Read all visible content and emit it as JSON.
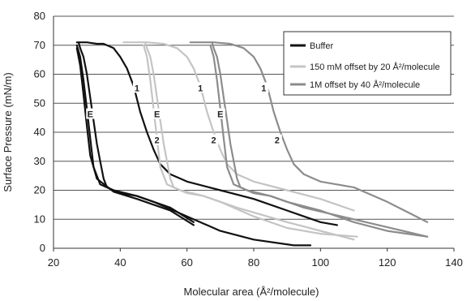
{
  "chart_data": {
    "type": "line",
    "xlabel": "Molecular area (Å²/molecule)",
    "ylabel": "Surface Pressure (mN/m)",
    "xlim": [
      20,
      140
    ],
    "ylim": [
      0,
      80
    ],
    "x_ticks": [
      "20",
      "40",
      "60",
      "80",
      "100",
      "120",
      "140"
    ],
    "y_ticks": [
      "0",
      "10",
      "20",
      "30",
      "40",
      "50",
      "60",
      "70",
      "80"
    ],
    "grid": "horizontal",
    "legend_position": "top-right",
    "colors": {
      "buffer": "#111111",
      "mM150": "#c4c4c4",
      "M1": "#8c8c8c"
    },
    "series": [
      {
        "name": "Buffer",
        "color_key": "buffer",
        "curves": [
          [
            [
              27,
              71
            ],
            [
              30,
              71
            ],
            [
              33,
              70.5
            ],
            [
              35,
              70.5
            ],
            [
              38,
              69
            ],
            [
              40,
              66
            ],
            [
              42,
              62
            ],
            [
              44,
              56
            ],
            [
              46,
              47
            ],
            [
              48,
              40
            ],
            [
              50,
              34
            ],
            [
              52,
              29
            ],
            [
              55,
              25.5
            ],
            [
              60,
              23
            ],
            [
              70,
              20
            ],
            [
              80,
              17
            ],
            [
              90,
              13
            ],
            [
              95,
              11
            ],
            [
              100,
              9
            ],
            [
              105,
              8
            ]
          ],
          [
            [
              97,
              1
            ],
            [
              92,
              1
            ],
            [
              80,
              3
            ],
            [
              70,
              6
            ],
            [
              60,
              11
            ],
            [
              50,
              16
            ],
            [
              45,
              18
            ],
            [
              40,
              19
            ],
            [
              36,
              21
            ],
            [
              35,
              24
            ],
            [
              34,
              30
            ],
            [
              33,
              36
            ],
            [
              32,
              44
            ],
            [
              31,
              52
            ],
            [
              30,
              60
            ],
            [
              29,
              66
            ],
            [
              28,
              69
            ],
            [
              27.5,
              71
            ]
          ],
          [
            [
              27,
              70
            ],
            [
              28,
              66
            ],
            [
              29,
              58
            ],
            [
              30,
              48
            ],
            [
              31,
              38
            ],
            [
              32,
              28
            ],
            [
              34,
              22
            ],
            [
              38,
              20
            ],
            [
              45,
              18
            ],
            [
              55,
              14
            ],
            [
              62,
              9
            ]
          ],
          [
            [
              27,
              69
            ],
            [
              28,
              63
            ],
            [
              29,
              53
            ],
            [
              30,
              42
            ],
            [
              31,
              32
            ],
            [
              33,
              24
            ],
            [
              38,
              19.5
            ],
            [
              45,
              17
            ],
            [
              55,
              13
            ],
            [
              62,
              8
            ]
          ]
        ]
      },
      {
        "name": "150 mM offset by 20 Å²/molecule",
        "color_key": "mM150",
        "curves": [
          [
            [
              41,
              71
            ],
            [
              48,
              71
            ],
            [
              53,
              70.5
            ],
            [
              57,
              69
            ],
            [
              60,
              66
            ],
            [
              62,
              62
            ],
            [
              64,
              56
            ],
            [
              66,
              47
            ],
            [
              68,
              40
            ],
            [
              70,
              34
            ],
            [
              72,
              29
            ],
            [
              75,
              25.5
            ],
            [
              80,
              23
            ],
            [
              90,
              20
            ],
            [
              100,
              17
            ],
            [
              110,
              13
            ]
          ],
          [
            [
              111,
              4
            ],
            [
              100,
              5
            ],
            [
              90,
              7
            ],
            [
              80,
              11
            ],
            [
              70,
              16
            ],
            [
              65,
              18
            ],
            [
              60,
              19
            ],
            [
              56,
              21
            ],
            [
              55,
              24
            ],
            [
              54,
              30
            ],
            [
              53,
              36
            ],
            [
              52,
              44
            ],
            [
              51,
              52
            ],
            [
              50,
              60
            ],
            [
              49,
              66
            ],
            [
              48,
              69
            ],
            [
              47.5,
              71
            ]
          ],
          [
            [
              47,
              70
            ],
            [
              48,
              66
            ],
            [
              49,
              58
            ],
            [
              50,
              48
            ],
            [
              51,
              38
            ],
            [
              52,
              28
            ],
            [
              54,
              22
            ],
            [
              58,
              20
            ],
            [
              65,
              18
            ],
            [
              75,
              14
            ],
            [
              90,
              9
            ],
            [
              110,
              3
            ]
          ]
        ]
      },
      {
        "name": "1M offset by 40 Å²/molecule",
        "color_key": "M1",
        "curves": [
          [
            [
              61,
              71
            ],
            [
              68,
              71
            ],
            [
              73,
              70.5
            ],
            [
              77,
              69
            ],
            [
              80,
              66
            ],
            [
              82,
              62
            ],
            [
              84,
              56
            ],
            [
              86,
              47
            ],
            [
              88,
              40
            ],
            [
              90,
              34
            ],
            [
              92,
              29
            ],
            [
              95,
              25.5
            ],
            [
              100,
              23
            ],
            [
              110,
              21
            ],
            [
              120,
              16
            ],
            [
              132,
              9
            ]
          ],
          [
            [
              132,
              4
            ],
            [
              120,
              6
            ],
            [
              110,
              9
            ],
            [
              100,
              13
            ],
            [
              90,
              16
            ],
            [
              85,
              18
            ],
            [
              80,
              19
            ],
            [
              76,
              21
            ],
            [
              75,
              24
            ],
            [
              74,
              30
            ],
            [
              73,
              36
            ],
            [
              72,
              44
            ],
            [
              71,
              52
            ],
            [
              70,
              60
            ],
            [
              69,
              66
            ],
            [
              68,
              69
            ],
            [
              67.5,
              71
            ]
          ],
          [
            [
              67,
              70
            ],
            [
              68,
              66
            ],
            [
              69,
              58
            ],
            [
              70,
              48
            ],
            [
              71,
              38
            ],
            [
              72,
              28
            ],
            [
              74,
              22
            ],
            [
              78,
              20
            ],
            [
              85,
              18
            ],
            [
              95,
              14
            ],
            [
              110,
              10
            ],
            [
              132,
              4
            ]
          ]
        ]
      }
    ],
    "annotations": [
      {
        "text": "1",
        "x": 45,
        "y": 55
      },
      {
        "text": "2",
        "x": 51,
        "y": 37
      },
      {
        "text": "E",
        "x": 31,
        "y": 46
      },
      {
        "text": "1",
        "x": 64,
        "y": 55
      },
      {
        "text": "2",
        "x": 68,
        "y": 37
      },
      {
        "text": "E",
        "x": 51,
        "y": 46
      },
      {
        "text": "1",
        "x": 83,
        "y": 55
      },
      {
        "text": "2",
        "x": 87,
        "y": 37
      },
      {
        "text": "E",
        "x": 70,
        "y": 46
      }
    ]
  }
}
